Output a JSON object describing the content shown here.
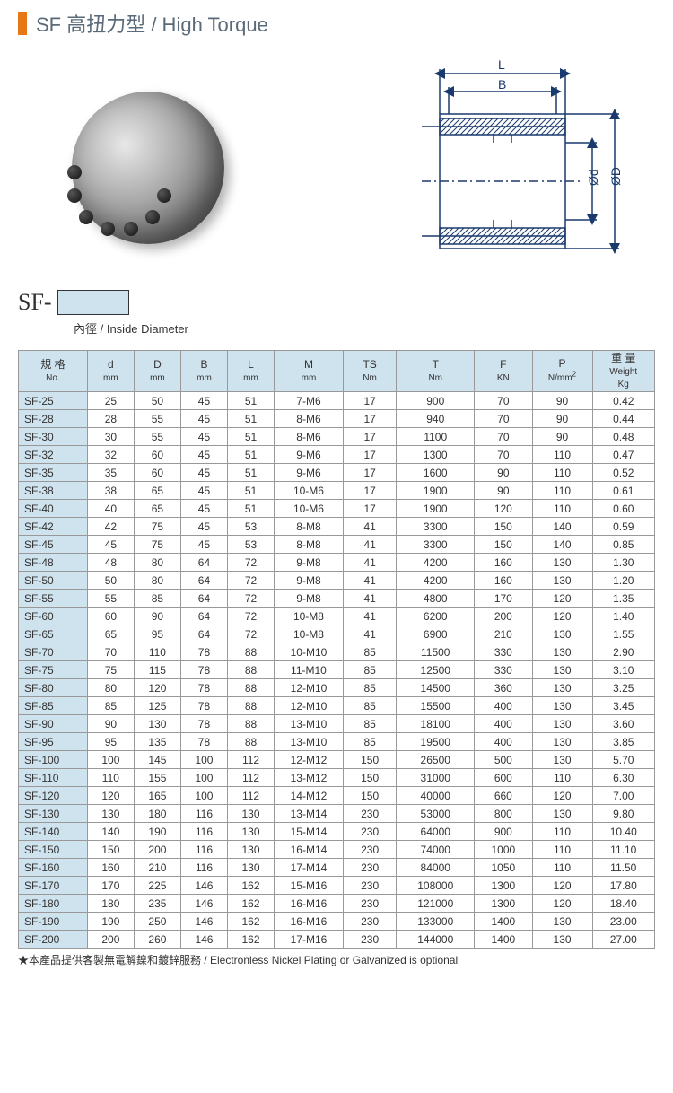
{
  "title": "SF 高扭力型 / High Torque",
  "sf_prefix": "SF-",
  "sf_sub": "內徑 / Inside Diameter",
  "diagram_labels": {
    "L": "L",
    "B": "B",
    "d": "Ød",
    "D": "ØD"
  },
  "table": {
    "headers": [
      {
        "top": "規 格",
        "bot": "No."
      },
      {
        "top": "d",
        "bot": "mm"
      },
      {
        "top": "D",
        "bot": "mm"
      },
      {
        "top": "B",
        "bot": "mm"
      },
      {
        "top": "L",
        "bot": "mm"
      },
      {
        "top": "M",
        "bot": "mm"
      },
      {
        "top": "TS",
        "bot": "Nm"
      },
      {
        "top": "T",
        "bot": "Nm"
      },
      {
        "top": "F",
        "bot": "KN"
      },
      {
        "top": "P",
        "bot": "N/mm²"
      },
      {
        "top": "重 量",
        "bot": "Weight Kg"
      }
    ],
    "col_widths": [
      "62",
      "42",
      "42",
      "42",
      "42",
      "62",
      "48",
      "70",
      "52",
      "54",
      "56"
    ],
    "rows": [
      [
        "SF-25",
        "25",
        "50",
        "45",
        "51",
        "7-M6",
        "17",
        "900",
        "70",
        "90",
        "0.42"
      ],
      [
        "SF-28",
        "28",
        "55",
        "45",
        "51",
        "8-M6",
        "17",
        "940",
        "70",
        "90",
        "0.44"
      ],
      [
        "SF-30",
        "30",
        "55",
        "45",
        "51",
        "8-M6",
        "17",
        "1100",
        "70",
        "90",
        "0.48"
      ],
      [
        "SF-32",
        "32",
        "60",
        "45",
        "51",
        "9-M6",
        "17",
        "1300",
        "70",
        "110",
        "0.47"
      ],
      [
        "SF-35",
        "35",
        "60",
        "45",
        "51",
        "9-M6",
        "17",
        "1600",
        "90",
        "110",
        "0.52"
      ],
      [
        "SF-38",
        "38",
        "65",
        "45",
        "51",
        "10-M6",
        "17",
        "1900",
        "90",
        "110",
        "0.61"
      ],
      [
        "SF-40",
        "40",
        "65",
        "45",
        "51",
        "10-M6",
        "17",
        "1900",
        "120",
        "110",
        "0.60"
      ],
      [
        "SF-42",
        "42",
        "75",
        "45",
        "53",
        "8-M8",
        "41",
        "3300",
        "150",
        "140",
        "0.59"
      ],
      [
        "SF-45",
        "45",
        "75",
        "45",
        "53",
        "8-M8",
        "41",
        "3300",
        "150",
        "140",
        "0.85"
      ],
      [
        "SF-48",
        "48",
        "80",
        "64",
        "72",
        "9-M8",
        "41",
        "4200",
        "160",
        "130",
        "1.30"
      ],
      [
        "SF-50",
        "50",
        "80",
        "64",
        "72",
        "9-M8",
        "41",
        "4200",
        "160",
        "130",
        "1.20"
      ],
      [
        "SF-55",
        "55",
        "85",
        "64",
        "72",
        "9-M8",
        "41",
        "4800",
        "170",
        "120",
        "1.35"
      ],
      [
        "SF-60",
        "60",
        "90",
        "64",
        "72",
        "10-M8",
        "41",
        "6200",
        "200",
        "120",
        "1.40"
      ],
      [
        "SF-65",
        "65",
        "95",
        "64",
        "72",
        "10-M8",
        "41",
        "6900",
        "210",
        "130",
        "1.55"
      ],
      [
        "SF-70",
        "70",
        "110",
        "78",
        "88",
        "10-M10",
        "85",
        "11500",
        "330",
        "130",
        "2.90"
      ],
      [
        "SF-75",
        "75",
        "115",
        "78",
        "88",
        "11-M10",
        "85",
        "12500",
        "330",
        "130",
        "3.10"
      ],
      [
        "SF-80",
        "80",
        "120",
        "78",
        "88",
        "12-M10",
        "85",
        "14500",
        "360",
        "130",
        "3.25"
      ],
      [
        "SF-85",
        "85",
        "125",
        "78",
        "88",
        "12-M10",
        "85",
        "15500",
        "400",
        "130",
        "3.45"
      ],
      [
        "SF-90",
        "90",
        "130",
        "78",
        "88",
        "13-M10",
        "85",
        "18100",
        "400",
        "130",
        "3.60"
      ],
      [
        "SF-95",
        "95",
        "135",
        "78",
        "88",
        "13-M10",
        "85",
        "19500",
        "400",
        "130",
        "3.85"
      ],
      [
        "SF-100",
        "100",
        "145",
        "100",
        "112",
        "12-M12",
        "150",
        "26500",
        "500",
        "130",
        "5.70"
      ],
      [
        "SF-110",
        "110",
        "155",
        "100",
        "112",
        "13-M12",
        "150",
        "31000",
        "600",
        "110",
        "6.30"
      ],
      [
        "SF-120",
        "120",
        "165",
        "100",
        "112",
        "14-M12",
        "150",
        "40000",
        "660",
        "120",
        "7.00"
      ],
      [
        "SF-130",
        "130",
        "180",
        "116",
        "130",
        "13-M14",
        "230",
        "53000",
        "800",
        "130",
        "9.80"
      ],
      [
        "SF-140",
        "140",
        "190",
        "116",
        "130",
        "15-M14",
        "230",
        "64000",
        "900",
        "110",
        "10.40"
      ],
      [
        "SF-150",
        "150",
        "200",
        "116",
        "130",
        "16-M14",
        "230",
        "74000",
        "1000",
        "110",
        "11.10"
      ],
      [
        "SF-160",
        "160",
        "210",
        "116",
        "130",
        "17-M14",
        "230",
        "84000",
        "1050",
        "110",
        "11.50"
      ],
      [
        "SF-170",
        "170",
        "225",
        "146",
        "162",
        "15-M16",
        "230",
        "108000",
        "1300",
        "120",
        "17.80"
      ],
      [
        "SF-180",
        "180",
        "235",
        "146",
        "162",
        "16-M16",
        "230",
        "121000",
        "1300",
        "120",
        "18.40"
      ],
      [
        "SF-190",
        "190",
        "250",
        "146",
        "162",
        "16-M16",
        "230",
        "133000",
        "1400",
        "130",
        "23.00"
      ],
      [
        "SF-200",
        "200",
        "260",
        "146",
        "162",
        "17-M16",
        "230",
        "144000",
        "1400",
        "130",
        "27.00"
      ]
    ]
  },
  "footnote": "★本產品提供客製無電解鎳和鍍鋅服務 / Electronless Nickel Plating or Galvanized is optional",
  "colors": {
    "accent": "#e67817",
    "header_bg": "#cfe3ee",
    "border": "#999999",
    "text": "#333333",
    "title_text": "#5a6a78"
  }
}
